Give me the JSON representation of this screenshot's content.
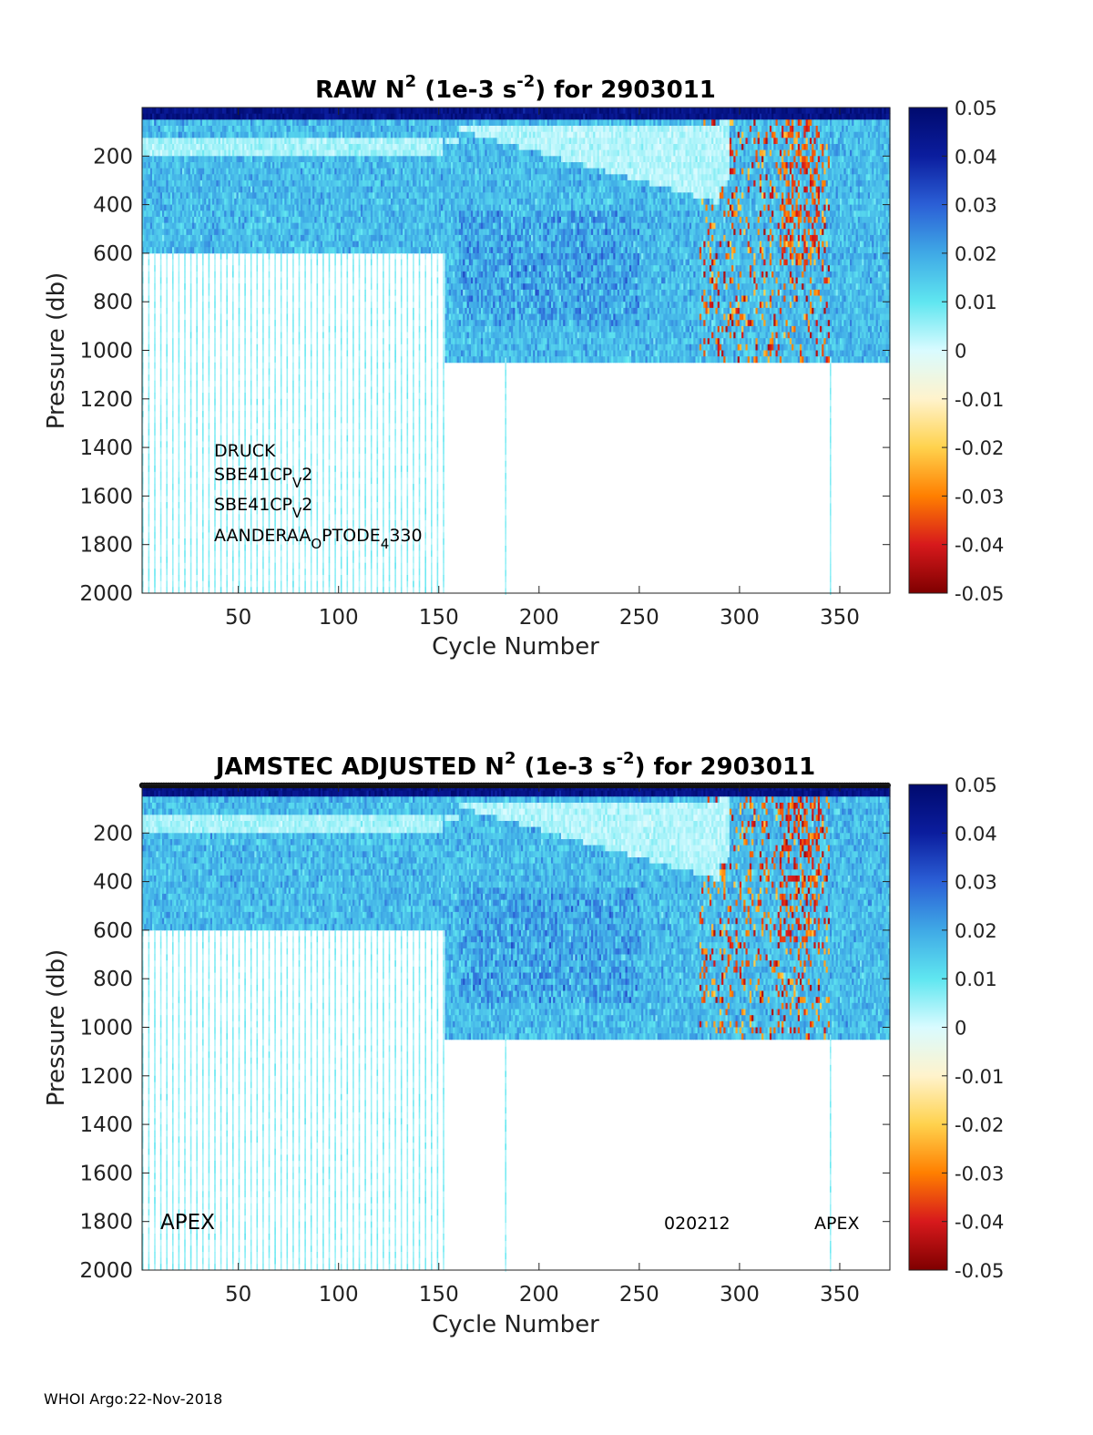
{
  "footer": "WHOI Argo:22-Nov-2018",
  "colormap": {
    "name": "jet-diverging",
    "stops": [
      "#7f0000",
      "#d7191c",
      "#ff7f00",
      "#ffd24d",
      "#fff3cc",
      "#d9fbff",
      "#5fe6f0",
      "#3fa9e6",
      "#2b5fd6",
      "#0b1d9e",
      "#000a6e"
    ]
  },
  "chart_data": [
    {
      "type": "heatmap",
      "title": {
        "main": "RAW N",
        "sup1": "2",
        "mid": " (1e-3 s",
        "sup2": "-2",
        "tail": ") for 2903011"
      },
      "xlabel": "Cycle Number",
      "ylabel": "Pressure (db)",
      "xlim": [
        2,
        375
      ],
      "ylim": [
        2000,
        0
      ],
      "xticks": [
        "50",
        "100",
        "150",
        "200",
        "250",
        "300",
        "350"
      ],
      "xtick_values": [
        50,
        100,
        150,
        200,
        250,
        300,
        350
      ],
      "yticks": [
        "200",
        "400",
        "600",
        "800",
        "1000",
        "1200",
        "1400",
        "1600",
        "1800",
        "2000"
      ],
      "ytick_values": [
        200,
        400,
        600,
        800,
        1000,
        1200,
        1400,
        1600,
        1800,
        2000
      ],
      "colorbar": {
        "range": [
          -0.05,
          0.05
        ],
        "ticks": [
          "0.05",
          "0.04",
          "0.03",
          "0.02",
          "0.01",
          "0",
          "-0.01",
          "-0.02",
          "-0.03",
          "-0.04",
          "-0.05"
        ]
      },
      "profile_depth": {
        "cycles_1_152_max_pressure": 2000,
        "cycles_1_152_dense_to": 600,
        "cycles_153_375_max_pressure": 1030,
        "deep_cycles": [
          183,
          345
        ]
      },
      "annotations": {
        "line1": "DRUCK",
        "line2_main": "SBE41CP",
        "line2_sub": "V",
        "line2_tail": "2",
        "line3_main": "SBE41CP",
        "line3_sub": "V",
        "line3_tail": "2",
        "line4_main": "AANDERAA",
        "line4_sub": "O",
        "line4_mid": "PTODE",
        "line4_sub2": "4",
        "line4_tail": "330"
      }
    },
    {
      "type": "heatmap",
      "title": {
        "main": "JAMSTEC  ADJUSTED N",
        "sup1": "2",
        "mid": " (1e-3 s",
        "sup2": "-2",
        "tail": ") for 2903011"
      },
      "xlabel": "Cycle Number",
      "ylabel": "Pressure (db)",
      "xlim": [
        2,
        375
      ],
      "ylim": [
        2000,
        0
      ],
      "xticks": [
        "50",
        "100",
        "150",
        "200",
        "250",
        "300",
        "350"
      ],
      "xtick_values": [
        50,
        100,
        150,
        200,
        250,
        300,
        350
      ],
      "yticks": [
        "200",
        "400",
        "600",
        "800",
        "1000",
        "1200",
        "1400",
        "1600",
        "1800",
        "2000"
      ],
      "ytick_values": [
        200,
        400,
        600,
        800,
        1000,
        1200,
        1400,
        1600,
        1800,
        2000
      ],
      "colorbar": {
        "range": [
          -0.05,
          0.05
        ],
        "ticks": [
          "0.05",
          "0.04",
          "0.03",
          "0.02",
          "0.01",
          "0",
          "-0.01",
          "-0.02",
          "-0.03",
          "-0.04",
          "-0.05"
        ]
      },
      "profile_depth": {
        "cycles_1_152_max_pressure": 2000,
        "cycles_1_152_dense_to": 600,
        "cycles_153_375_max_pressure": 1030,
        "deep_cycles": [
          183,
          345
        ]
      },
      "annotations": {
        "left": "APEX",
        "mid": "020212",
        "right": "APEX"
      }
    }
  ]
}
